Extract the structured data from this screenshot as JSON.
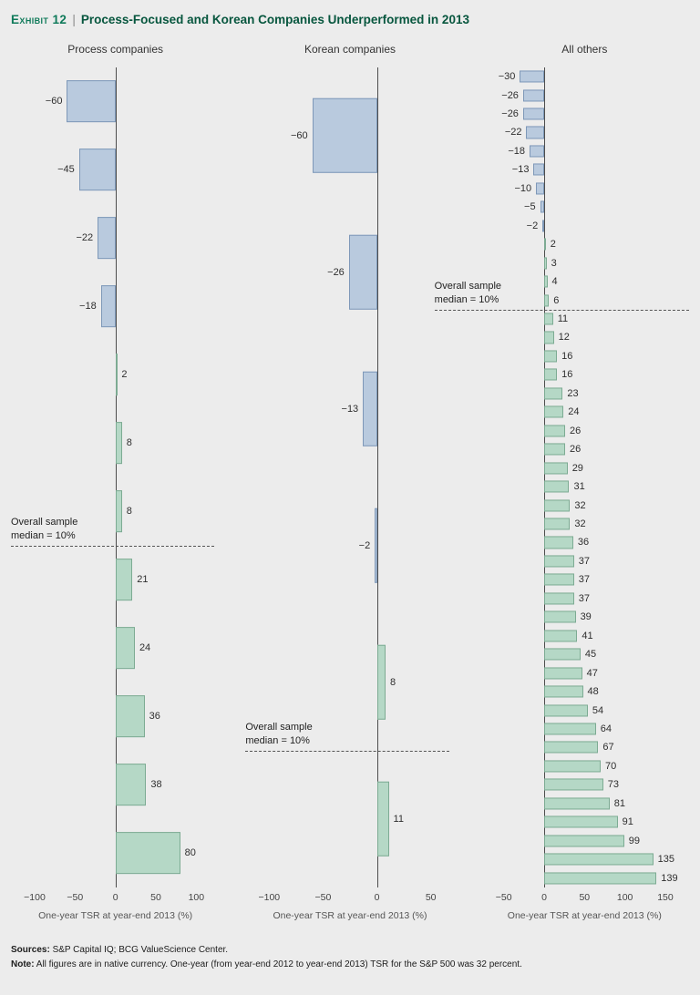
{
  "header": {
    "exhibit_label": "Exhibit 12",
    "divider": "|",
    "title": "Process-Focused and Korean Companies Underperformed in 2013"
  },
  "colors": {
    "background": "#ececec",
    "negative_fill": "#b9cade",
    "negative_border": "#7e98b8",
    "positive_fill": "#b5d8c6",
    "positive_border": "#7dab93",
    "axis": "#4d4d4d",
    "exhibit_green": "#0f7a5a",
    "title_green": "#07563e"
  },
  "chart_data": [
    {
      "type": "bar",
      "orientation": "horizontal",
      "title": "Process companies",
      "xlabel": "One-year TSR at year-end 2013 (%)",
      "xlim": [
        -100,
        100
      ],
      "xticks": [
        -100,
        -50,
        0,
        50,
        100
      ],
      "values": [
        -60,
        -45,
        -22,
        -18,
        2,
        8,
        8,
        21,
        24,
        36,
        38,
        80
      ],
      "grid": false,
      "legend": false,
      "median_annotation": {
        "label_lines": [
          "Overall sample",
          "median = 10%"
        ],
        "value": 10,
        "after_index": 6
      }
    },
    {
      "type": "bar",
      "orientation": "horizontal",
      "title": "Korean companies",
      "xlabel": "One-year TSR at year-end 2013 (%)",
      "xlim": [
        -100,
        50
      ],
      "xticks": [
        -100,
        -50,
        0,
        50
      ],
      "values": [
        -60,
        -26,
        -13,
        -2,
        8,
        11
      ],
      "grid": false,
      "legend": false,
      "median_annotation": {
        "label_lines": [
          "Overall sample",
          "median = 10%"
        ],
        "value": 10,
        "after_index": 4
      }
    },
    {
      "type": "bar",
      "orientation": "horizontal",
      "title": "All others",
      "xlabel": "One-year TSR at year-end 2013 (%)",
      "xlim": [
        -50,
        150
      ],
      "xticks": [
        -50,
        0,
        50,
        100,
        150
      ],
      "values": [
        -30,
        -26,
        -26,
        -22,
        -18,
        -13,
        -10,
        -5,
        -2,
        2,
        3,
        4,
        6,
        11,
        12,
        16,
        16,
        23,
        24,
        26,
        26,
        29,
        31,
        32,
        32,
        36,
        37,
        37,
        37,
        39,
        41,
        45,
        47,
        48,
        54,
        64,
        67,
        70,
        73,
        81,
        91,
        99,
        135,
        139
      ],
      "grid": false,
      "legend": false,
      "median_annotation": {
        "label_lines": [
          "Overall sample",
          "median = 10%"
        ],
        "value": 10,
        "after_index": 12
      }
    }
  ],
  "footer": {
    "sources_label": "Sources:",
    "sources_text": " S&P Capital IQ; BCG ValueScience Center.",
    "note_label": "Note:",
    "note_text": " All figures are in native currency. One-year (from year-end 2012 to year-end 2013) TSR for the S&P 500 was 32 percent."
  }
}
